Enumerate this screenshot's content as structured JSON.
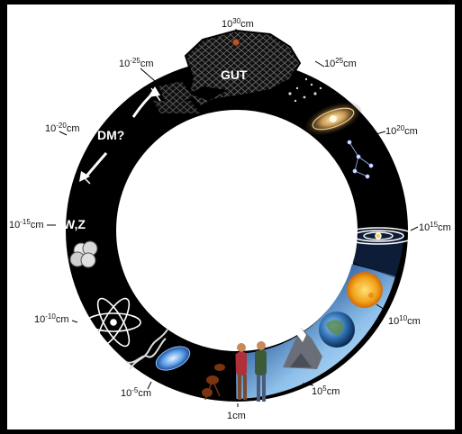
{
  "scale_labels": [
    {
      "base": "10",
      "exp": "30",
      "unit": "cm"
    },
    {
      "base": "10",
      "exp": "25",
      "unit": "cm"
    },
    {
      "base": "10",
      "exp": "20",
      "unit": "cm"
    },
    {
      "base": "10",
      "exp": "15",
      "unit": "cm"
    },
    {
      "base": "10",
      "exp": "10",
      "unit": "cm"
    },
    {
      "base": "10",
      "exp": "5",
      "unit": "cm"
    },
    {
      "base": "1",
      "exp": "",
      "unit": "cm"
    },
    {
      "base": "10",
      "exp": "-5",
      "unit": "cm"
    },
    {
      "base": "10",
      "exp": "-10",
      "unit": "cm"
    },
    {
      "base": "10",
      "exp": "-15",
      "unit": "cm"
    },
    {
      "base": "10",
      "exp": "-20",
      "unit": "cm"
    },
    {
      "base": "10",
      "exp": "-25",
      "unit": "cm"
    }
  ],
  "inner_labels": {
    "gut": "GUT",
    "dm": "DM?",
    "wz": "W,Z"
  },
  "colors": {
    "ring": "#000000",
    "sky": "#9cc8ee",
    "background": "#ffffff",
    "frame": "#000000"
  }
}
